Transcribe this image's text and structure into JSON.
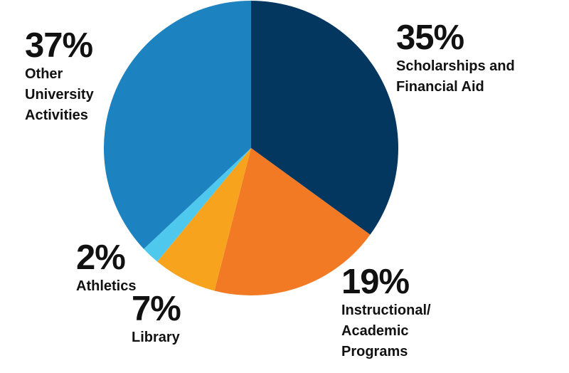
{
  "chart_data": {
    "type": "pie",
    "start_angle": "12 o'clock",
    "direction": "clockwise",
    "slices": [
      {
        "pct_label": "35%",
        "value": 35,
        "category": "Scholarships and\nFinancial Aid",
        "color": "#043760"
      },
      {
        "pct_label": "19%",
        "value": 19,
        "category": "Instructional/\nAcademic\nPrograms",
        "color": "#f37a24"
      },
      {
        "pct_label": "7%",
        "value": 7,
        "category": "Library",
        "color": "#f8a31d"
      },
      {
        "pct_label": "2%",
        "value": 2,
        "category": "Athletics",
        "color": "#4ec8ec"
      },
      {
        "pct_label": "37%",
        "value": 37,
        "category": "Other\nUniversity\nActivities",
        "color": "#1c82c0"
      }
    ]
  }
}
